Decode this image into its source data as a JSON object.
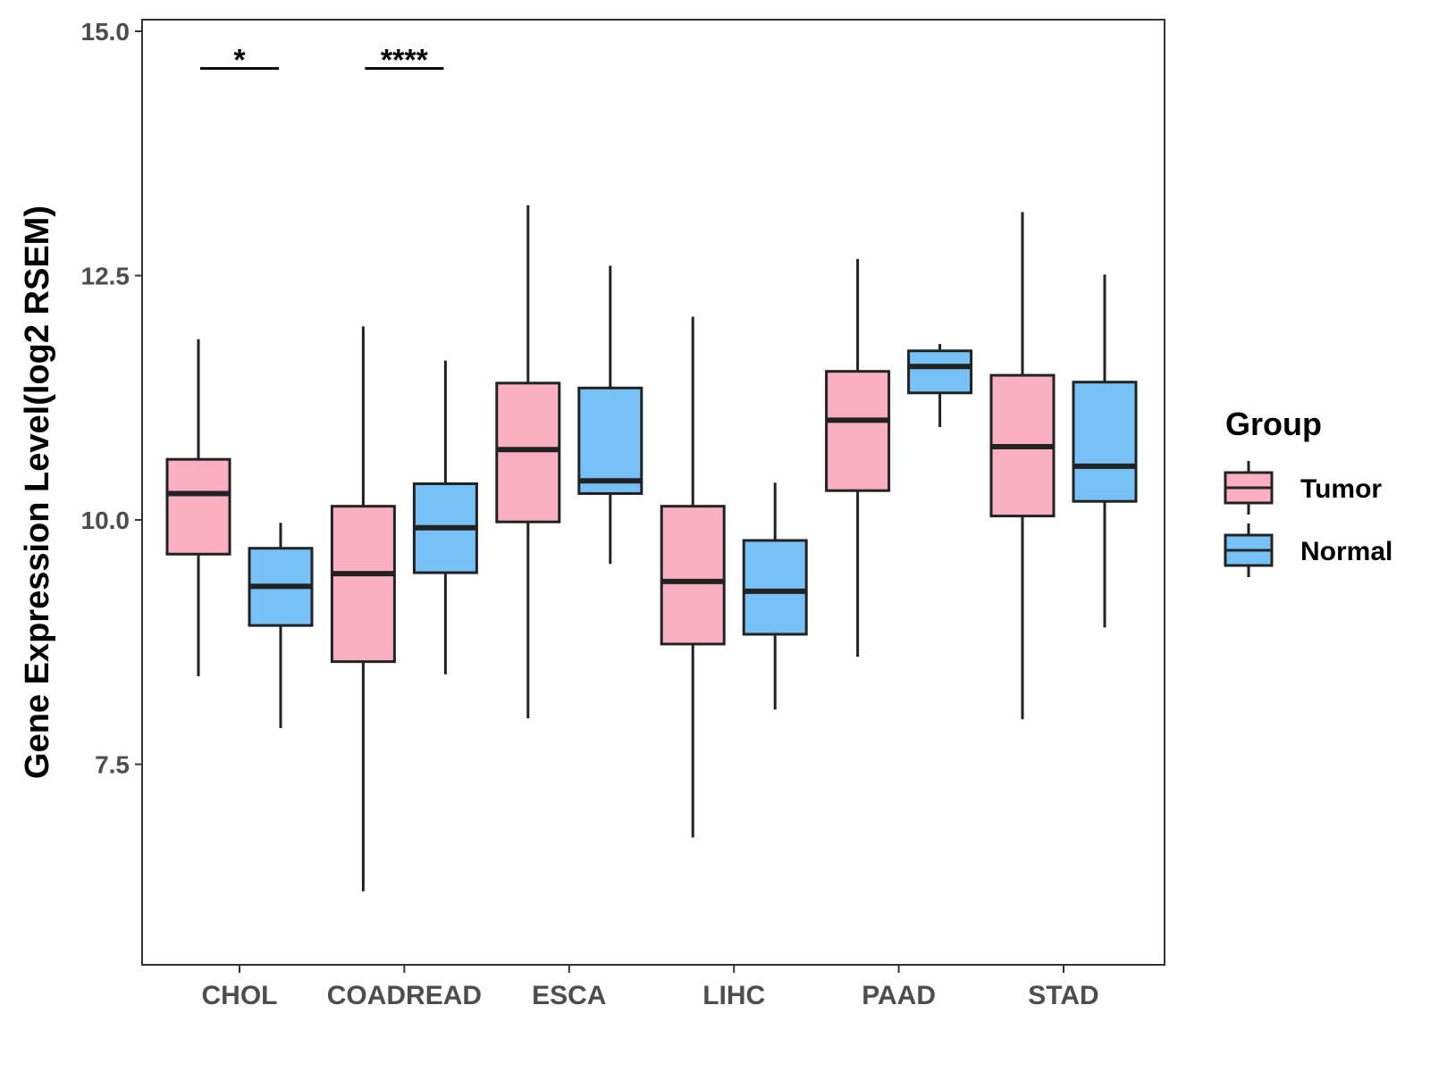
{
  "chart_data": {
    "type": "boxplot",
    "ylabel": "Gene Expression Level(log2 RSEM)",
    "xlabel": "",
    "ylim": [
      5.4,
      15.1
    ],
    "yticks": [
      7.5,
      10.0,
      12.5,
      15.0
    ],
    "ytick_labels": [
      "7.5",
      "10.0",
      "12.5",
      "15.0"
    ],
    "grid": false,
    "legend": {
      "title": "Group",
      "position": "right",
      "entries": [
        {
          "name": "Tumor",
          "color": "#fbb0c2"
        },
        {
          "name": "Normal",
          "color": "#77c1f7"
        }
      ]
    },
    "categories": [
      "CHOL",
      "COADREAD",
      "ESCA",
      "LIHC",
      "PAAD",
      "STAD"
    ],
    "series": [
      {
        "name": "Tumor",
        "color": "#fbb0c2",
        "boxes": [
          {
            "lower_whisker": 8.4,
            "q1": 9.65,
            "median": 10.27,
            "q3": 10.62,
            "upper_whisker": 11.85
          },
          {
            "lower_whisker": 6.2,
            "q1": 8.55,
            "median": 9.45,
            "q3": 10.14,
            "upper_whisker": 11.98
          },
          {
            "lower_whisker": 7.97,
            "q1": 9.98,
            "median": 10.72,
            "q3": 11.4,
            "upper_whisker": 13.22
          },
          {
            "lower_whisker": 6.75,
            "q1": 8.73,
            "median": 9.37,
            "q3": 10.14,
            "upper_whisker": 12.08
          },
          {
            "lower_whisker": 8.6,
            "q1": 10.3,
            "median": 11.02,
            "q3": 11.52,
            "upper_whisker": 12.67
          },
          {
            "lower_whisker": 7.96,
            "q1": 10.04,
            "median": 10.75,
            "q3": 11.48,
            "upper_whisker": 13.15
          }
        ]
      },
      {
        "name": "Normal",
        "color": "#77c1f7",
        "boxes": [
          {
            "lower_whisker": 7.87,
            "q1": 8.92,
            "median": 9.32,
            "q3": 9.71,
            "upper_whisker": 9.97
          },
          {
            "lower_whisker": 8.42,
            "q1": 9.46,
            "median": 9.92,
            "q3": 10.37,
            "upper_whisker": 11.63
          },
          {
            "lower_whisker": 9.55,
            "q1": 10.27,
            "median": 10.4,
            "q3": 11.35,
            "upper_whisker": 12.6
          },
          {
            "lower_whisker": 8.06,
            "q1": 8.83,
            "median": 9.27,
            "q3": 9.79,
            "upper_whisker": 10.38
          },
          {
            "lower_whisker": 10.95,
            "q1": 11.3,
            "median": 11.57,
            "q3": 11.73,
            "upper_whisker": 11.8
          },
          {
            "lower_whisker": 8.9,
            "q1": 10.19,
            "median": 10.55,
            "q3": 11.41,
            "upper_whisker": 12.51
          }
        ]
      }
    ],
    "annotations": [
      {
        "category": "CHOL",
        "text": "*",
        "y": 14.62
      },
      {
        "category": "COADREAD",
        "text": "****",
        "y": 14.62
      }
    ]
  }
}
